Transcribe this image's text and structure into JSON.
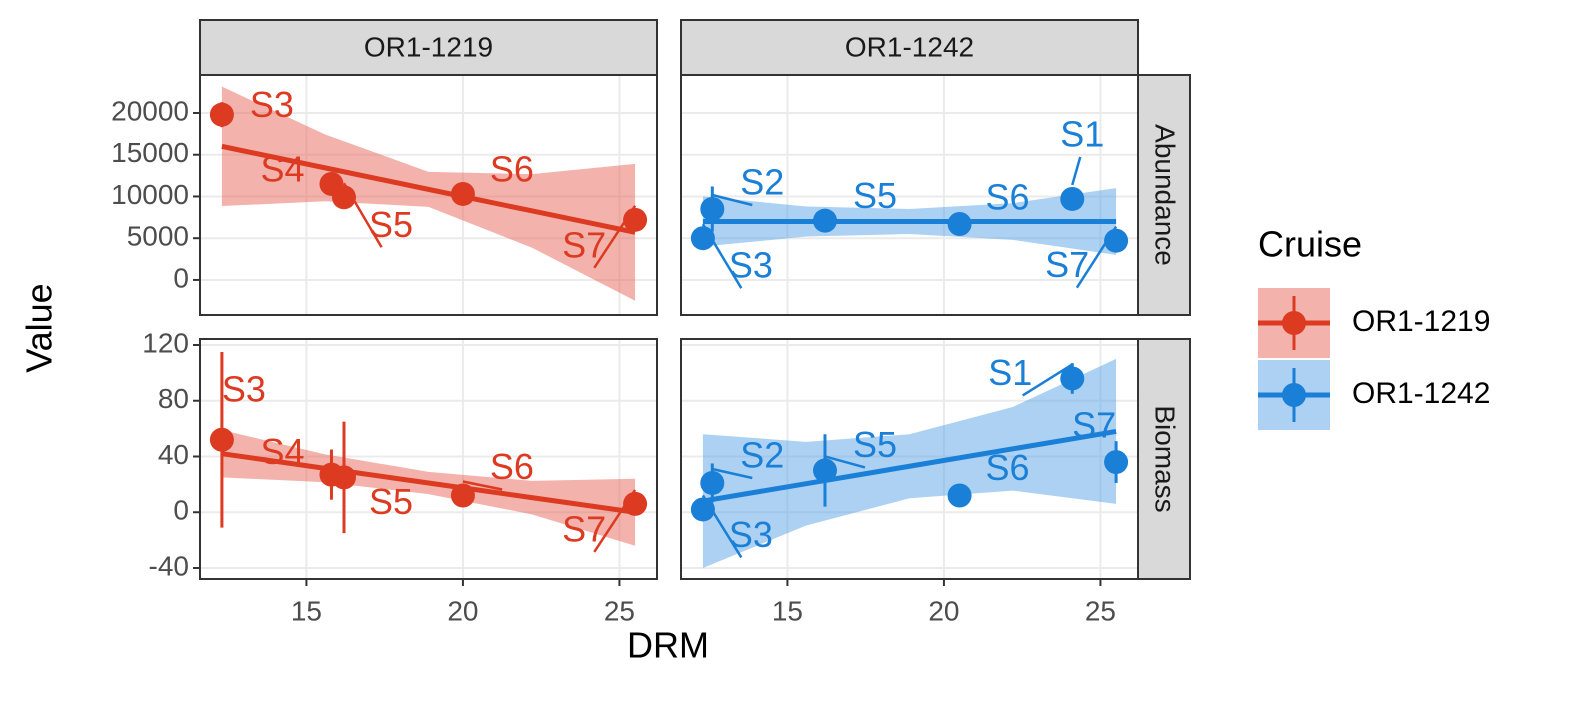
{
  "chart_data": {
    "type": "scatter",
    "x_label": "DRM",
    "y_label": "Value",
    "legend_title": "Cruise",
    "xlim": [
      11.6,
      26.2
    ],
    "xticks": [
      15,
      20,
      25
    ],
    "grid": true,
    "rows": [
      {
        "name": "Abundance",
        "ylim": [
          -4200,
          24550
        ],
        "yticks": [
          0,
          5000,
          10000,
          15000,
          20000
        ]
      },
      {
        "name": "Biomass",
        "ylim": [
          -47.9,
          124.3
        ],
        "yticks": [
          -40,
          0,
          40,
          80,
          120
        ]
      }
    ],
    "series": [
      {
        "name": "OR1-1219",
        "color": "#dd3a22",
        "band_color": "#e8675a",
        "panels": [
          {
            "labels": [
              "S3",
              "S4",
              "S5",
              "S6",
              "S7"
            ],
            "x": [
              12.3,
              15.8,
              16.2,
              20.0,
              25.5
            ],
            "values": [
              19800,
              11500,
              9900,
              10300,
              7200
            ],
            "errors": [
              1500,
              700,
              500,
              500,
              500
            ],
            "fit": {
              "x": [
                12.3,
                15.6,
                18.9,
                22.2,
                25.5
              ],
              "values": [
                16000,
                13425,
                10850,
                8275,
                5700
              ],
              "lower": [
                8850,
                9425,
                8750,
                3875,
                -2500
              ],
              "upper": [
                23150,
                17425,
                12950,
                12675,
                13900
              ]
            }
          },
          {
            "labels": [
              "S3",
              "S4",
              "S5",
              "S6",
              "S7"
            ],
            "x": [
              12.3,
              15.8,
              16.2,
              20.0,
              25.5
            ],
            "values": [
              52,
              27,
              25,
              12,
              6
            ],
            "errors": [
              63,
              18,
              40,
              3,
              3
            ],
            "fit": {
              "x": [
                12.3,
                15.6,
                18.9,
                22.2,
                25.5
              ],
              "values": [
                42,
                31.5,
                21,
                10.5,
                0
              ],
              "lower": [
                25,
                21.5,
                13,
                -1.5,
                -24
              ],
              "upper": [
                59,
                41.5,
                29,
                22.5,
                24
              ]
            }
          }
        ]
      },
      {
        "name": "OR1-1242",
        "color": "#1a7fd6",
        "band_color": "#5aa3e6",
        "panels": [
          {
            "labels": [
              "S3",
              "S2",
              "S5",
              "S6",
              "S1",
              "S7"
            ],
            "x": [
              12.3,
              12.6,
              16.2,
              20.5,
              24.1,
              25.5
            ],
            "values": [
              5000,
              8500,
              7100,
              6700,
              9700,
              4700
            ],
            "errors": [
              500,
              2700,
              500,
              500,
              1300,
              500
            ],
            "fit": {
              "x": [
                12.3,
                15.6,
                18.9,
                22.2,
                25.5
              ],
              "values": [
                7000,
                7000,
                7000,
                7000,
                7000
              ],
              "lower": [
                4000,
                5200,
                5500,
                4800,
                3000
              ],
              "upper": [
                10000,
                8800,
                8500,
                9200,
                11000
              ]
            }
          },
          {
            "labels": [
              "S3",
              "S2",
              "S5",
              "S6",
              "S1",
              "S7"
            ],
            "x": [
              12.3,
              12.6,
              16.2,
              20.5,
              24.1,
              25.5
            ],
            "values": [
              2,
              21,
              30,
              12,
              96,
              36
            ],
            "errors": [
              3,
              14,
              26,
              3,
              11,
              15
            ],
            "fit": {
              "x": [
                12.3,
                15.6,
                18.9,
                22.2,
                25.5
              ],
              "values": [
                8,
                20.5,
                33,
                45.5,
                58
              ],
              "lower": [
                -40,
                -9.5,
                10,
                15.5,
                6
              ],
              "upper": [
                56,
                50.5,
                56,
                75.5,
                110
              ]
            }
          }
        ]
      }
    ]
  }
}
